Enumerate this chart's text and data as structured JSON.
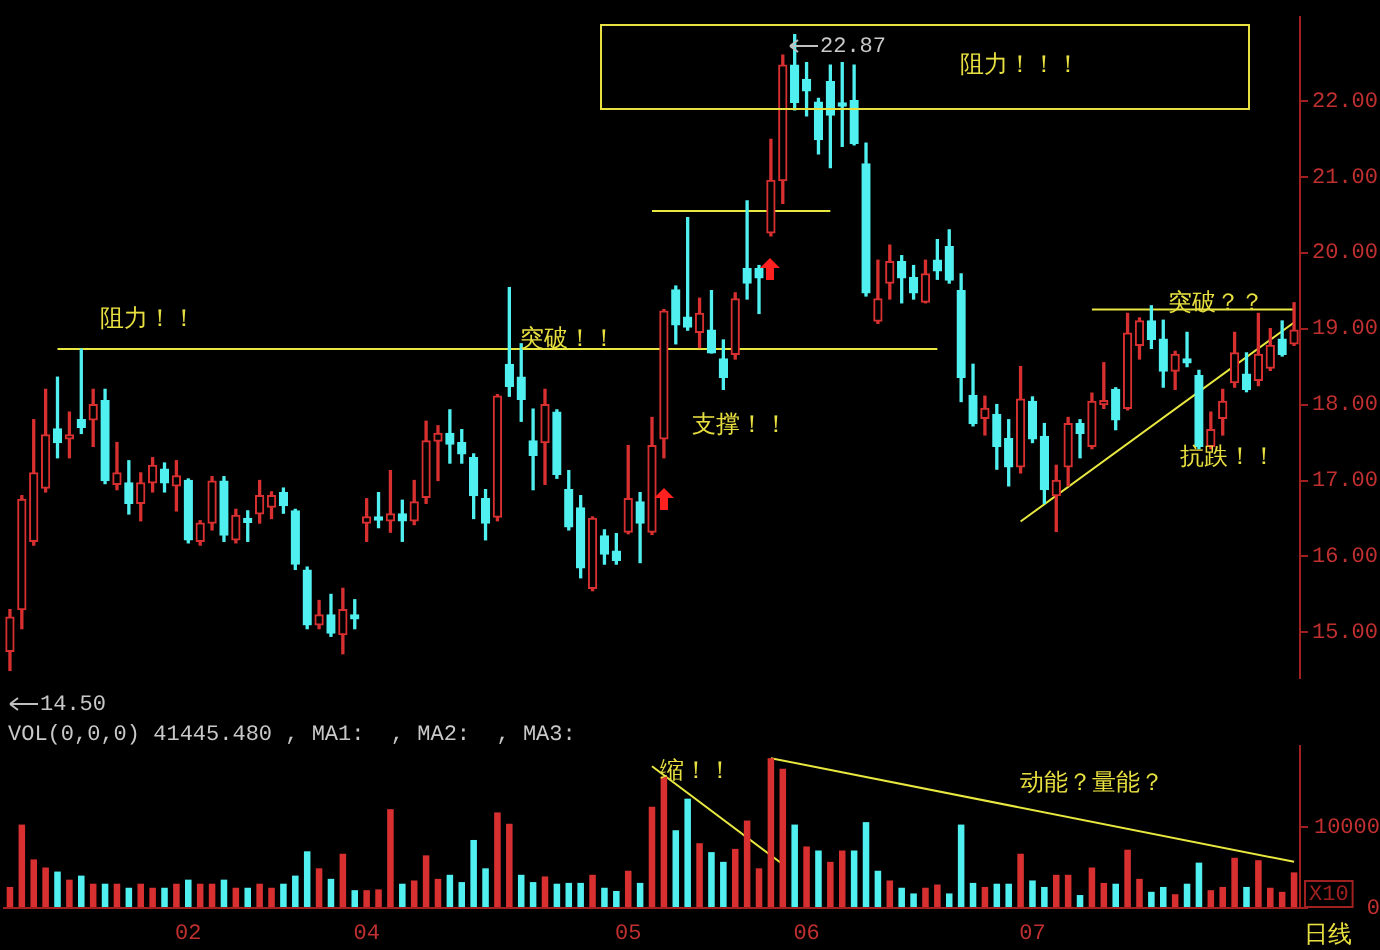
{
  "chart_data": [
    {
      "type": "candlestick",
      "categories": [
        null,
        null,
        null,
        null,
        null,
        null,
        null,
        null,
        null,
        null,
        null,
        null,
        null,
        null,
        null,
        "02",
        null,
        null,
        null,
        null,
        null,
        null,
        null,
        null,
        null,
        null,
        null,
        null,
        null,
        null,
        "04",
        null,
        null,
        null,
        null,
        null,
        null,
        null,
        null,
        null,
        null,
        null,
        null,
        null,
        null,
        null,
        null,
        null,
        null,
        null,
        null,
        null,
        "05",
        null,
        null,
        null,
        null,
        null,
        null,
        null,
        null,
        null,
        null,
        null,
        null,
        null,
        null,
        "06",
        null,
        null,
        null,
        null,
        null,
        null,
        null,
        null,
        null,
        null,
        null,
        null,
        null,
        null,
        null,
        null,
        null,
        null,
        "07",
        null,
        null,
        null,
        null,
        null,
        null,
        null,
        null,
        null,
        null,
        null,
        null,
        null,
        null,
        null,
        null,
        null,
        null,
        null,
        null,
        null,
        null
      ],
      "ohlc": [
        [
          14.75,
          15.3,
          14.5,
          15.2
        ],
        [
          15.3,
          16.8,
          15.05,
          16.75
        ],
        [
          16.2,
          17.8,
          16.15,
          17.1
        ],
        [
          16.9,
          18.2,
          16.85,
          17.6
        ],
        [
          17.68,
          18.36,
          17.3,
          17.5
        ],
        [
          17.55,
          17.9,
          17.3,
          17.6
        ],
        [
          17.8,
          18.73,
          17.62,
          17.7
        ],
        [
          17.8,
          18.2,
          17.45,
          18.0
        ],
        [
          18.05,
          18.2,
          16.96,
          17.0
        ],
        [
          16.95,
          17.5,
          16.88,
          17.1
        ],
        [
          16.97,
          17.26,
          16.56,
          16.7
        ],
        [
          16.7,
          17.1,
          16.47,
          16.97
        ],
        [
          16.97,
          17.3,
          16.85,
          17.2
        ],
        [
          17.15,
          17.23,
          16.85,
          16.97
        ],
        [
          16.93,
          17.26,
          16.6,
          17.06
        ],
        [
          17.0,
          17.02,
          16.18,
          16.22
        ],
        [
          16.2,
          16.47,
          16.15,
          16.44
        ],
        [
          16.44,
          17.05,
          16.35,
          16.99
        ],
        [
          16.99,
          17.05,
          16.2,
          16.28
        ],
        [
          16.22,
          16.62,
          16.18,
          16.54
        ],
        [
          16.5,
          16.6,
          16.2,
          16.45
        ],
        [
          16.56,
          17.0,
          16.44,
          16.8
        ],
        [
          16.65,
          16.85,
          16.5,
          16.8
        ],
        [
          16.84,
          16.9,
          16.57,
          16.67
        ],
        [
          16.6,
          16.62,
          15.83,
          15.9
        ],
        [
          15.82,
          15.86,
          15.05,
          15.1
        ],
        [
          15.1,
          15.42,
          15.05,
          15.23
        ],
        [
          15.23,
          15.5,
          14.95,
          14.99
        ],
        [
          14.97,
          15.58,
          14.72,
          15.3
        ],
        [
          15.23,
          15.43,
          15.05,
          15.18
        ],
        [
          16.44,
          16.76,
          16.2,
          16.52
        ],
        [
          16.52,
          16.84,
          16.38,
          16.48
        ],
        [
          16.47,
          17.13,
          16.32,
          16.56
        ],
        [
          16.56,
          16.74,
          16.2,
          16.47
        ],
        [
          16.47,
          17.0,
          16.42,
          16.72
        ],
        [
          16.78,
          17.78,
          16.7,
          17.52
        ],
        [
          17.52,
          17.72,
          17.0,
          17.62
        ],
        [
          17.62,
          17.93,
          17.23,
          17.48
        ],
        [
          17.5,
          17.67,
          17.23,
          17.35
        ],
        [
          17.3,
          17.35,
          16.5,
          16.8
        ],
        [
          16.76,
          16.88,
          16.22,
          16.44
        ],
        [
          16.52,
          18.13,
          16.47,
          18.11
        ],
        [
          18.53,
          19.54,
          18.11,
          18.24
        ],
        [
          18.36,
          18.8,
          17.78,
          18.07
        ],
        [
          17.52,
          17.94,
          16.88,
          17.33
        ],
        [
          17.5,
          18.2,
          16.95,
          18.0
        ],
        [
          17.9,
          17.93,
          17.03,
          17.08
        ],
        [
          16.88,
          17.13,
          16.35,
          16.39
        ],
        [
          16.64,
          16.8,
          15.72,
          15.85
        ],
        [
          15.58,
          16.52,
          15.55,
          16.5
        ],
        [
          16.27,
          16.35,
          15.9,
          16.03
        ],
        [
          16.07,
          16.3,
          15.9,
          15.95
        ],
        [
          16.32,
          17.46,
          16.3,
          16.76
        ],
        [
          16.72,
          16.84,
          15.92,
          16.44
        ],
        [
          16.32,
          17.83,
          16.29,
          17.46
        ],
        [
          17.55,
          19.25,
          17.3,
          19.23
        ],
        [
          19.51,
          19.56,
          18.8,
          19.05
        ],
        [
          19.15,
          20.46,
          18.98,
          19.02
        ],
        [
          18.95,
          19.4,
          18.75,
          19.2
        ],
        [
          18.98,
          19.5,
          18.68,
          18.68
        ],
        [
          18.6,
          18.85,
          18.2,
          18.36
        ],
        [
          18.66,
          19.47,
          18.6,
          19.39
        ],
        [
          19.79,
          20.68,
          19.39,
          19.6
        ],
        [
          19.79,
          19.83,
          19.2,
          19.67
        ],
        [
          20.26,
          21.49,
          20.22,
          20.95
        ],
        [
          20.95,
          22.6,
          20.65,
          22.47
        ],
        [
          22.47,
          22.87,
          21.88,
          21.98
        ],
        [
          22.28,
          22.5,
          21.8,
          22.13
        ],
        [
          21.98,
          22.03,
          21.3,
          21.49
        ],
        [
          22.25,
          22.47,
          21.12,
          21.81
        ],
        [
          21.97,
          22.5,
          21.4,
          21.93
        ],
        [
          22.0,
          22.47,
          21.42,
          21.44
        ],
        [
          21.17,
          21.44,
          19.43,
          19.47
        ],
        [
          19.1,
          19.9,
          19.07,
          19.39
        ],
        [
          19.6,
          20.1,
          19.39,
          19.88
        ],
        [
          19.88,
          19.96,
          19.34,
          19.67
        ],
        [
          19.67,
          19.83,
          19.39,
          19.47
        ],
        [
          19.35,
          19.9,
          19.34,
          19.72
        ],
        [
          19.9,
          20.17,
          19.65,
          19.76
        ],
        [
          20.08,
          20.3,
          19.6,
          19.64
        ],
        [
          19.5,
          19.72,
          18.04,
          18.36
        ],
        [
          18.12,
          18.53,
          17.72,
          17.75
        ],
        [
          17.82,
          18.11,
          17.6,
          17.95
        ],
        [
          17.87,
          18.0,
          17.15,
          17.45
        ],
        [
          17.55,
          17.8,
          16.93,
          17.18
        ],
        [
          17.18,
          18.5,
          17.1,
          18.07
        ],
        [
          18.04,
          18.1,
          17.5,
          17.55
        ],
        [
          17.58,
          17.75,
          16.7,
          16.88
        ],
        [
          16.8,
          17.2,
          16.33,
          17.0
        ],
        [
          17.18,
          17.83,
          16.93,
          17.75
        ],
        [
          17.75,
          17.8,
          17.3,
          17.62
        ],
        [
          17.45,
          18.15,
          17.42,
          18.04
        ],
        [
          18.0,
          18.55,
          17.95,
          18.05
        ],
        [
          18.2,
          18.22,
          17.67,
          17.8
        ],
        [
          17.95,
          19.2,
          17.93,
          18.94
        ],
        [
          18.78,
          19.14,
          18.6,
          19.1
        ],
        [
          19.1,
          19.3,
          18.74,
          18.86
        ],
        [
          18.86,
          19.11,
          18.23,
          18.44
        ],
        [
          18.44,
          18.7,
          18.2,
          18.66
        ],
        [
          18.6,
          18.95,
          18.5,
          18.55
        ],
        [
          18.38,
          18.45,
          17.42,
          17.45
        ],
        [
          17.45,
          17.9,
          17.42,
          17.67
        ],
        [
          17.82,
          18.2,
          17.6,
          18.04
        ],
        [
          18.29,
          18.95,
          18.23,
          18.68
        ],
        [
          18.4,
          18.68,
          18.17,
          18.2
        ],
        [
          18.32,
          19.2,
          18.25,
          18.66
        ],
        [
          18.48,
          19.0,
          18.45,
          18.78
        ],
        [
          18.86,
          19.1,
          18.64,
          18.66
        ],
        [
          18.8,
          19.34,
          18.78,
          18.98
        ]
      ],
      "series": [
        {
          "type": "line",
          "color": "#e8e840",
          "values": [
            null,
            null,
            null,
            null,
            18.73,
            null,
            null,
            null,
            null,
            null,
            null,
            null,
            null,
            null,
            null,
            null,
            null,
            null,
            null,
            null,
            null,
            null,
            null,
            null,
            null,
            null,
            null,
            null,
            null,
            null,
            null,
            null,
            null,
            null,
            null,
            null,
            null,
            null,
            null,
            null,
            null,
            null,
            null,
            null,
            null,
            null,
            null,
            null,
            null,
            null,
            null,
            null,
            null,
            null,
            null,
            null,
            null,
            null,
            null,
            null,
            null,
            null,
            null,
            null,
            null,
            null,
            null,
            null,
            null,
            null,
            null,
            null,
            null,
            null,
            null,
            null,
            null,
            null,
            18.73,
            null,
            null,
            null,
            null,
            null,
            null,
            null,
            null,
            null,
            null,
            null,
            null,
            null,
            null,
            null,
            null,
            null,
            null,
            null,
            null,
            null,
            null,
            null,
            null,
            null,
            null,
            null,
            null,
            null,
            null
          ]
        },
        {
          "type": "line",
          "color": "#e8e840",
          "values": [
            null,
            null,
            null,
            null,
            null,
            null,
            null,
            null,
            null,
            null,
            null,
            null,
            null,
            null,
            null,
            null,
            null,
            null,
            null,
            null,
            null,
            null,
            null,
            null,
            null,
            null,
            null,
            null,
            null,
            null,
            null,
            null,
            null,
            null,
            null,
            null,
            null,
            null,
            null,
            null,
            null,
            null,
            null,
            null,
            null,
            null,
            null,
            null,
            null,
            null,
            null,
            null,
            null,
            null,
            20.55,
            null,
            null,
            null,
            null,
            null,
            null,
            null,
            null,
            null,
            null,
            null,
            null,
            null,
            null,
            20.55,
            null,
            null,
            null,
            null,
            null,
            null,
            null,
            null,
            null,
            null,
            null,
            null,
            null,
            null,
            null,
            null,
            null,
            null,
            null,
            null,
            null,
            null,
            null,
            null,
            null,
            null,
            null,
            null,
            null,
            null,
            null,
            null,
            null,
            null,
            null,
            null,
            null,
            null,
            null
          ]
        },
        {
          "type": "line",
          "color": "#e8e840",
          "values": [
            null,
            null,
            null,
            null,
            null,
            null,
            null,
            null,
            null,
            null,
            null,
            null,
            null,
            null,
            null,
            null,
            null,
            null,
            null,
            null,
            null,
            null,
            null,
            null,
            null,
            null,
            null,
            null,
            null,
            null,
            null,
            null,
            null,
            null,
            null,
            null,
            null,
            null,
            null,
            null,
            null,
            null,
            null,
            null,
            null,
            null,
            null,
            null,
            null,
            null,
            null,
            null,
            null,
            null,
            null,
            null,
            null,
            null,
            null,
            null,
            null,
            null,
            null,
            null,
            null,
            null,
            null,
            null,
            null,
            null,
            null,
            null,
            null,
            null,
            null,
            null,
            null,
            null,
            null,
            null,
            null,
            null,
            null,
            null,
            null,
            null,
            null,
            null,
            null,
            null,
            null,
            19.25,
            null,
            null,
            null,
            null,
            null,
            null,
            null,
            null,
            null,
            null,
            null,
            null,
            null,
            null,
            null,
            null,
            19.25
          ]
        },
        {
          "type": "line",
          "color": "#e8e840",
          "values": [
            null,
            null,
            null,
            null,
            null,
            null,
            null,
            null,
            null,
            null,
            null,
            null,
            null,
            null,
            null,
            null,
            null,
            null,
            null,
            null,
            null,
            null,
            null,
            null,
            null,
            null,
            null,
            null,
            null,
            null,
            null,
            null,
            null,
            null,
            null,
            null,
            null,
            null,
            null,
            null,
            null,
            null,
            null,
            null,
            null,
            null,
            null,
            null,
            null,
            null,
            null,
            null,
            null,
            null,
            null,
            null,
            null,
            null,
            null,
            null,
            null,
            null,
            null,
            null,
            null,
            null,
            null,
            null,
            null,
            null,
            null,
            null,
            null,
            null,
            null,
            null,
            null,
            null,
            null,
            null,
            null,
            null,
            null,
            null,
            null,
            16.46,
            null,
            null,
            null,
            null,
            null,
            null,
            null,
            null,
            null,
            null,
            null,
            null,
            null,
            null,
            null,
            null,
            null,
            null,
            null,
            null,
            null,
            null,
            19.08
          ]
        }
      ],
      "ylim": [
        14.4,
        23.1
      ],
      "yticks": [
        {
          "value": 15,
          "label": "15.00"
        },
        {
          "value": 16,
          "label": "16.00"
        },
        {
          "value": 17,
          "label": "17.00"
        },
        {
          "value": 18,
          "label": "18.00"
        },
        {
          "value": 19,
          "label": "19.00"
        },
        {
          "value": 20,
          "label": "20.00"
        },
        {
          "value": 21,
          "label": "21.00"
        },
        {
          "value": 22,
          "label": "22.00"
        }
      ],
      "tick_labels": "y",
      "annotations": [
        "阻力！！",
        "突破！！",
        "支撑！！",
        "阻力！！！",
        "突破？？",
        "抗跌！！",
        "22.87",
        "14.50"
      ]
    },
    {
      "type": "bar",
      "title": "VOL(0,0,0) 41445.480 , MA1:  , MA2:  , MA3:",
      "ylabel": "X10",
      "categories": [
        null,
        null,
        null,
        null,
        null,
        null,
        null,
        null,
        null,
        null,
        null,
        null,
        null,
        null,
        null,
        "02",
        null,
        null,
        null,
        null,
        null,
        null,
        null,
        null,
        null,
        null,
        null,
        null,
        null,
        null,
        "04",
        null,
        null,
        null,
        null,
        null,
        null,
        null,
        null,
        null,
        null,
        null,
        null,
        null,
        null,
        null,
        null,
        null,
        null,
        null,
        null,
        null,
        "05",
        null,
        null,
        null,
        null,
        null,
        null,
        null,
        null,
        null,
        null,
        null,
        null,
        null,
        null,
        "06",
        null,
        null,
        null,
        null,
        null,
        null,
        null,
        null,
        null,
        null,
        null,
        null,
        null,
        null,
        null,
        null,
        null,
        null,
        "07",
        null,
        null,
        null,
        null,
        null,
        null,
        null,
        null,
        null,
        null,
        null,
        null,
        null,
        null,
        null,
        null,
        null,
        null,
        null,
        null,
        null,
        null
      ],
      "series": [
        {
          "type": "bar",
          "values": [
            2600,
            10300,
            6000,
            5000,
            4500,
            3500,
            4000,
            3000,
            3000,
            3000,
            2500,
            3000,
            2500,
            2500,
            3000,
            3500,
            3000,
            3000,
            3500,
            2500,
            2500,
            3000,
            2500,
            3000,
            4000,
            7000,
            4900,
            3600,
            6700,
            2200,
            2200,
            2300,
            12200,
            3000,
            3400,
            6500,
            3600,
            4100,
            3200,
            8400,
            4900,
            11800,
            10400,
            4100,
            3200,
            3900,
            3000,
            3100,
            3100,
            4100,
            2500,
            2100,
            4600,
            3100,
            12500,
            16200,
            9600,
            13500,
            8000,
            6900,
            5700,
            7300,
            10800,
            4900,
            18500,
            17200,
            10300,
            7600,
            7100,
            5700,
            7100,
            7100,
            10600,
            4600,
            3400,
            2500,
            1800,
            2500,
            2900,
            1800,
            10300,
            3100,
            2600,
            3000,
            3000,
            6700,
            3400,
            2600,
            4100,
            4100,
            1600,
            5000,
            3100,
            3000,
            7200,
            3600,
            2000,
            2600,
            1700,
            3000,
            5600,
            2200,
            2600,
            6200,
            2600,
            5900,
            2500,
            2000,
            4400
          ],
          "colors": [
            "#d83030",
            "#d83030",
            "#d83030",
            "#d83030",
            "#50f0f0",
            "#d83030",
            "#50f0f0",
            "#d83030",
            "#50f0f0",
            "#d83030",
            "#50f0f0",
            "#d83030",
            "#d83030",
            "#50f0f0",
            "#d83030",
            "#50f0f0",
            "#d83030",
            "#d83030",
            "#50f0f0",
            "#d83030",
            "#50f0f0",
            "#d83030",
            "#d83030",
            "#50f0f0",
            "#50f0f0",
            "#50f0f0",
            "#d83030",
            "#50f0f0",
            "#d83030",
            "#50f0f0",
            "#d83030",
            "#d83030",
            "#d83030",
            "#50f0f0",
            "#d83030",
            "#d83030",
            "#d83030",
            "#50f0f0",
            "#50f0f0",
            "#50f0f0",
            "#50f0f0",
            "#d83030",
            "#d83030",
            "#50f0f0",
            "#50f0f0",
            "#d83030",
            "#50f0f0",
            "#50f0f0",
            "#50f0f0",
            "#d83030",
            "#50f0f0",
            "#50f0f0",
            "#d83030",
            "#50f0f0",
            "#d83030",
            "#d83030",
            "#50f0f0",
            "#50f0f0",
            "#d83030",
            "#50f0f0",
            "#50f0f0",
            "#d83030",
            "#d83030",
            "#d83030",
            "#d83030",
            "#d83030",
            "#50f0f0",
            "#d83030",
            "#50f0f0",
            "#d83030",
            "#d83030",
            "#50f0f0",
            "#50f0f0",
            "#50f0f0",
            "#d83030",
            "#50f0f0",
            "#50f0f0",
            "#d83030",
            "#d83030",
            "#50f0f0",
            "#50f0f0",
            "#50f0f0",
            "#d83030",
            "#50f0f0",
            "#50f0f0",
            "#d83030",
            "#50f0f0",
            "#50f0f0",
            "#d83030",
            "#d83030",
            "#50f0f0",
            "#d83030",
            "#d83030",
            "#50f0f0",
            "#d83030",
            "#d83030",
            "#50f0f0",
            "#50f0f0",
            "#d83030",
            "#50f0f0",
            "#50f0f0",
            "#d83030",
            "#d83030",
            "#d83030",
            "#50f0f0",
            "#d83030",
            "#d83030",
            "#d83030",
            "#d83030"
          ]
        },
        {
          "type": "line",
          "color": "#e8e840",
          "values": [
            null,
            null,
            null,
            null,
            null,
            null,
            null,
            null,
            null,
            null,
            null,
            null,
            null,
            null,
            null,
            null,
            null,
            null,
            null,
            null,
            null,
            null,
            null,
            null,
            null,
            null,
            null,
            null,
            null,
            null,
            null,
            null,
            null,
            null,
            null,
            null,
            null,
            null,
            null,
            null,
            null,
            null,
            null,
            null,
            null,
            null,
            null,
            null,
            null,
            null,
            null,
            null,
            null,
            null,
            17500,
            null,
            null,
            null,
            null,
            null,
            null,
            null,
            null,
            null,
            null,
            5400,
            null,
            null,
            null,
            null,
            null,
            null,
            null,
            null,
            null,
            null,
            null,
            null,
            null,
            null,
            null,
            null,
            null,
            null,
            null,
            null,
            null,
            null,
            null,
            null,
            null,
            null,
            null,
            null,
            null,
            null,
            null,
            null,
            null,
            null,
            null,
            null,
            null,
            null,
            null,
            null,
            null,
            null,
            null
          ]
        },
        {
          "type": "line",
          "color": "#e8e840",
          "values": [
            null,
            null,
            null,
            null,
            null,
            null,
            null,
            null,
            null,
            null,
            null,
            null,
            null,
            null,
            null,
            null,
            null,
            null,
            null,
            null,
            null,
            null,
            null,
            null,
            null,
            null,
            null,
            null,
            null,
            null,
            null,
            null,
            null,
            null,
            null,
            null,
            null,
            null,
            null,
            null,
            null,
            null,
            null,
            null,
            null,
            null,
            null,
            null,
            null,
            null,
            null,
            null,
            null,
            null,
            null,
            null,
            null,
            null,
            null,
            null,
            null,
            null,
            null,
            null,
            18500,
            null,
            null,
            null,
            null,
            null,
            null,
            null,
            null,
            null,
            null,
            null,
            null,
            null,
            null,
            null,
            null,
            null,
            null,
            null,
            null,
            null,
            null,
            null,
            null,
            null,
            null,
            null,
            null,
            null,
            null,
            null,
            null,
            null,
            null,
            null,
            null,
            null,
            null,
            null,
            null,
            null,
            null,
            null,
            5700
          ]
        }
      ],
      "ylim": [
        0,
        20000
      ],
      "yticks": [
        0,
        10000
      ],
      "annotations": [
        "缩！！",
        "动能？量能？",
        "日线"
      ]
    }
  ]
}
